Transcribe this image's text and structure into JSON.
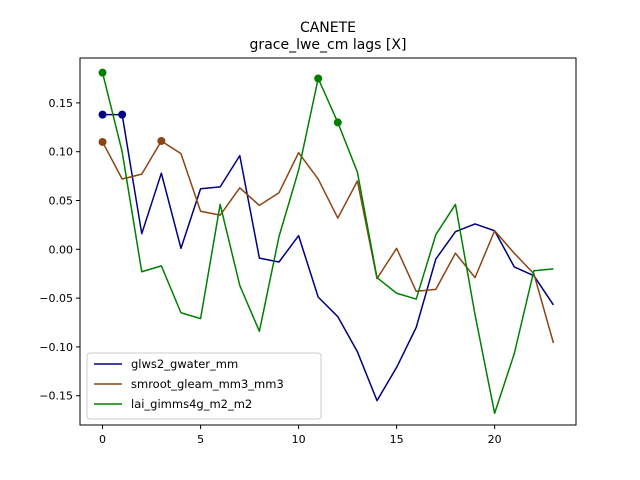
{
  "chart_data": {
    "type": "line",
    "title": "CANETE",
    "subtitle": "grace_lwe_cm lags [X]",
    "xlabel": "",
    "ylabel": "",
    "xlim": [
      -1.15,
      24.15
    ],
    "ylim": [
      -0.18,
      0.196
    ],
    "xticks": [
      0,
      5,
      10,
      15,
      20
    ],
    "yticks": [
      -0.15,
      -0.1,
      -0.05,
      0.0,
      0.05,
      0.1,
      0.15
    ],
    "ytick_labels": [
      "−0.15",
      "−0.10",
      "−0.05",
      "0.00",
      "0.05",
      "0.10",
      "0.15"
    ],
    "grid": false,
    "legend_position": "lower-left",
    "x": [
      0,
      1,
      2,
      3,
      4,
      5,
      6,
      7,
      8,
      9,
      10,
      11,
      12,
      13,
      14,
      15,
      16,
      17,
      18,
      19,
      20,
      21,
      22,
      23
    ],
    "series": [
      {
        "name": "glws2_gwater_mm",
        "color": "#000080",
        "values": [
          0.138,
          0.138,
          0.016,
          0.078,
          0.001,
          0.062,
          0.064,
          0.096,
          -0.009,
          -0.013,
          0.014,
          -0.049,
          -0.069,
          -0.105,
          -0.155,
          -0.121,
          -0.08,
          -0.01,
          0.018,
          0.026,
          0.019,
          -0.018,
          -0.027,
          -0.057
        ],
        "markers": [
          0,
          1
        ]
      },
      {
        "name": "smroot_gleam_mm3_mm3",
        "color": "#8b4513",
        "values": [
          0.11,
          0.072,
          0.077,
          0.111,
          0.098,
          0.039,
          0.035,
          0.063,
          0.045,
          0.058,
          0.099,
          0.072,
          0.032,
          0.07,
          -0.03,
          0.001,
          -0.043,
          -0.041,
          -0.004,
          -0.029,
          0.019,
          -0.004,
          -0.025,
          -0.096
        ],
        "markers": [
          0,
          3
        ]
      },
      {
        "name": "lai_gimms4g_m2_m2",
        "color": "#008000",
        "values": [
          0.181,
          0.1,
          -0.023,
          -0.017,
          -0.065,
          -0.071,
          0.046,
          -0.037,
          -0.084,
          0.013,
          0.081,
          0.175,
          0.13,
          0.079,
          -0.029,
          -0.045,
          -0.051,
          0.015,
          0.046,
          -0.067,
          -0.168,
          -0.107,
          -0.022,
          -0.02
        ],
        "markers": [
          0,
          11,
          12
        ]
      }
    ]
  }
}
